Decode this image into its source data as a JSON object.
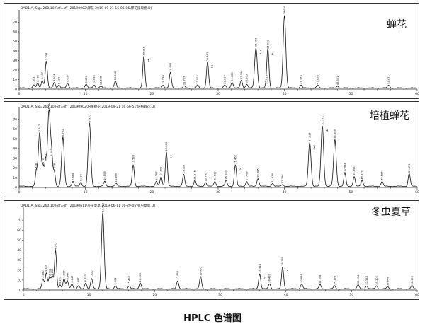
{
  "caption": "HPLC 色谱图",
  "chart_data": [
    {
      "type": "line",
      "title": "蝉花",
      "header": "DAD1 A, Sig=260,10 Ref=off (20190902\\蝉花 2019-09-21 16-06-06\\蝉花提取物.D)",
      "xlim": [
        0,
        60
      ],
      "x_ticks": [
        0,
        10,
        20,
        30,
        40,
        50,
        60
      ],
      "ylim": [
        0,
        80
      ],
      "y_ticks": [
        0,
        10,
        20,
        30,
        40,
        50,
        60,
        70
      ],
      "peaks": [
        {
          "x": 2.2,
          "h": 3,
          "label": "1.853"
        },
        {
          "x": 2.8,
          "h": 5,
          "label": "2.389"
        },
        {
          "x": 3.5,
          "h": 8,
          "label": "2.957"
        },
        {
          "x": 4.1,
          "h": 28,
          "label": "3.599"
        },
        {
          "x": 5.3,
          "h": 6,
          "label": "4.934"
        },
        {
          "x": 6.0,
          "h": 3,
          "label": "5.520"
        },
        {
          "x": 7.3,
          "h": 5,
          "label": "6.637"
        },
        {
          "x": 10.1,
          "h": 4,
          "label": "9.637"
        },
        {
          "x": 11.3,
          "h": 3,
          "label": "10.694"
        },
        {
          "x": 12.3,
          "h": 2,
          "label": "11.695"
        },
        {
          "x": 14.5,
          "h": 7,
          "label": "13.858"
        },
        {
          "x": 18.8,
          "h": 33,
          "label": "18.215",
          "marker": "1"
        },
        {
          "x": 21.7,
          "h": 3,
          "label": "18.996"
        },
        {
          "x": 22.8,
          "h": 16,
          "label": "19.995"
        },
        {
          "x": 24.9,
          "h": 2,
          "label": "21.707"
        },
        {
          "x": 26.9,
          "h": 3,
          "label": "25.003"
        },
        {
          "x": 28.4,
          "h": 27,
          "label": "26.462",
          "marker": "2"
        },
        {
          "x": 31.0,
          "h": 3,
          "label": "29.037"
        },
        {
          "x": 32.1,
          "h": 6,
          "label": "31.029"
        },
        {
          "x": 33.5,
          "h": 8,
          "label": "32.396"
        },
        {
          "x": 34.3,
          "h": 4,
          "label": "33.303"
        },
        {
          "x": 35.7,
          "h": 42,
          "label": "34.669",
          "marker": "3"
        },
        {
          "x": 37.3,
          "h": 3,
          "label": "35.615"
        },
        {
          "x": 37.5,
          "h": 40,
          "label": "35.979",
          "marker": "4"
        },
        {
          "x": 40.0,
          "h": 76,
          "label": "38.620"
        },
        {
          "x": 42.5,
          "h": 3,
          "label": "41.363"
        },
        {
          "x": 45.0,
          "h": 3,
          "label": "43.826"
        },
        {
          "x": 48.0,
          "h": 2,
          "label": "46.621"
        },
        {
          "x": 55.7,
          "h": 3,
          "label": "54.671"
        }
      ]
    },
    {
      "type": "line",
      "title": "培植蝉花",
      "header": "DAD1 A, Sig=260,10 Ref=off (20190902\\培植蝉花 2019-09-21 16-56-51\\培植蝉花.D)",
      "xlim": [
        0,
        60
      ],
      "x_ticks": [
        0,
        10,
        20,
        30,
        40,
        50,
        60
      ],
      "ylim": [
        0,
        80
      ],
      "y_ticks": [
        0,
        10,
        20,
        30,
        40,
        50,
        60,
        70
      ],
      "peaks": [
        {
          "x": 2.6,
          "h": 15,
          "label": "2.538"
        },
        {
          "x": 3.1,
          "h": 55,
          "label": "2.917"
        },
        {
          "x": 3.6,
          "h": 20,
          "label": "3.570"
        },
        {
          "x": 4.0,
          "h": 25,
          "label": "3.987"
        },
        {
          "x": 4.5,
          "h": 78,
          "label": "4.534"
        },
        {
          "x": 4.9,
          "h": 30,
          "label": "4.803"
        },
        {
          "x": 5.3,
          "h": 15,
          "label": "5.278"
        },
        {
          "x": 6.6,
          "h": 50,
          "label": "6.761"
        },
        {
          "x": 8.1,
          "h": 5,
          "label": "7.886"
        },
        {
          "x": 9.3,
          "h": 4,
          "label": "9.308"
        },
        {
          "x": 10.6,
          "h": 65,
          "label": "7.916"
        },
        {
          "x": 12.9,
          "h": 5,
          "label": "10.808"
        },
        {
          "x": 14.6,
          "h": 3,
          "label": "14.569"
        },
        {
          "x": 17.2,
          "h": 22,
          "label": "13.588"
        },
        {
          "x": 20.7,
          "h": 5,
          "label": "14.787"
        },
        {
          "x": 21.4,
          "h": 10,
          "label": "17.190"
        },
        {
          "x": 22.2,
          "h": 35,
          "label": "18.004",
          "marker": "1"
        },
        {
          "x": 24.8,
          "h": 12,
          "label": "19.968"
        },
        {
          "x": 26.5,
          "h": 6,
          "label": "21.845"
        },
        {
          "x": 28.1,
          "h": 4,
          "label": "22.749"
        },
        {
          "x": 29.5,
          "h": 5,
          "label": "25.013"
        },
        {
          "x": 31.2,
          "h": 6,
          "label": "26.182"
        },
        {
          "x": 32.6,
          "h": 22,
          "label": "26.462",
          "marker": "2"
        },
        {
          "x": 34.3,
          "h": 5,
          "label": "27.469"
        },
        {
          "x": 36.0,
          "h": 8,
          "label": "28.685"
        },
        {
          "x": 38.2,
          "h": 3,
          "label": "31.119"
        },
        {
          "x": 39.7,
          "h": 2,
          "label": "32.386"
        },
        {
          "x": 43.8,
          "h": 45,
          "label": "34.617",
          "marker": "3"
        },
        {
          "x": 45.7,
          "h": 62,
          "label": "35.971",
          "marker": "4"
        },
        {
          "x": 47.6,
          "h": 48,
          "label": "38.608"
        },
        {
          "x": 49.1,
          "h": 14,
          "label": "37.648"
        },
        {
          "x": 50.5,
          "h": 10,
          "label": "39.893"
        },
        {
          "x": 51.7,
          "h": 6,
          "label": "40.521"
        },
        {
          "x": 54.7,
          "h": 5,
          "label": "48.567"
        },
        {
          "x": 58.8,
          "h": 13,
          "label": "53.851"
        }
      ]
    },
    {
      "type": "line",
      "title": "冬虫夏草",
      "header": "DAD1 A, Sig=260,10 Ref=off (20190611\\冬虫夏草 2019-06-11 16-29-05\\冬虫夏草.D)",
      "xlim": [
        0,
        60
      ],
      "x_ticks": [
        0,
        10,
        20,
        30,
        40,
        50,
        60
      ],
      "ylim": [
        0,
        80
      ],
      "y_ticks": [
        0,
        10,
        20,
        30,
        40,
        50,
        60,
        70
      ],
      "peaks": [
        {
          "x": 3.0,
          "h": 10,
          "label": "2.880"
        },
        {
          "x": 3.5,
          "h": 16,
          "label": "3.301"
        },
        {
          "x": 4.0,
          "h": 12,
          "label": "3.711"
        },
        {
          "x": 4.4,
          "h": 12,
          "label": "4.058"
        },
        {
          "x": 4.9,
          "h": 38,
          "label": "4.565"
        },
        {
          "x": 5.6,
          "h": 4,
          "label": "5.103"
        },
        {
          "x": 6.2,
          "h": 10,
          "label": "5.887"
        },
        {
          "x": 6.7,
          "h": 8,
          "label": "6.347"
        },
        {
          "x": 7.4,
          "h": 5,
          "label": "6.847"
        },
        {
          "x": 8.4,
          "h": 3,
          "label": "7.487"
        },
        {
          "x": 9.5,
          "h": 6,
          "label": "8.753"
        },
        {
          "x": 10.4,
          "h": 10,
          "label": "7.620"
        },
        {
          "x": 12.1,
          "h": 76,
          "label": "11.893"
        },
        {
          "x": 14.0,
          "h": 3,
          "label": "9.982"
        },
        {
          "x": 16.1,
          "h": 3,
          "label": "15.433"
        },
        {
          "x": 17.8,
          "h": 6,
          "label": "12.869"
        },
        {
          "x": 23.5,
          "h": 8,
          "label": "17.948"
        },
        {
          "x": 27.0,
          "h": 12,
          "label": "19.906"
        },
        {
          "x": 36.0,
          "h": 15,
          "label": "25.914",
          "marker": "2"
        },
        {
          "x": 37.5,
          "h": 5,
          "label": "28.489"
        },
        {
          "x": 39.5,
          "h": 22,
          "label": "29.185",
          "marker": "3"
        },
        {
          "x": 42.4,
          "h": 5,
          "label": "30.858"
        },
        {
          "x": 45.2,
          "h": 4,
          "label": "32.358"
        },
        {
          "x": 47.4,
          "h": 3,
          "label": "34.195"
        },
        {
          "x": 51.0,
          "h": 4,
          "label": "36.354"
        },
        {
          "x": 52.3,
          "h": 3,
          "label": "37.543"
        },
        {
          "x": 53.8,
          "h": 3,
          "label": "39.300"
        },
        {
          "x": 55.5,
          "h": 2,
          "label": "39.848"
        },
        {
          "x": 59.2,
          "h": 3,
          "label": "51.995"
        }
      ]
    }
  ]
}
